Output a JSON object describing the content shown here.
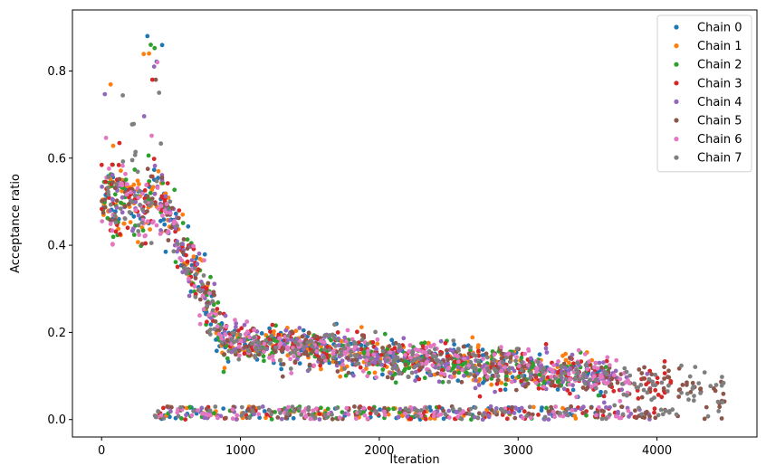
{
  "chart_data": {
    "type": "scatter",
    "xlabel": "Iteration",
    "ylabel": "Acceptance ratio",
    "xlim": [
      -210,
      4720
    ],
    "ylim": [
      -0.04,
      0.94
    ],
    "xticks": [
      0,
      1000,
      2000,
      3000,
      4000
    ],
    "yticks": [
      0.0,
      0.2,
      0.4,
      0.6,
      0.8
    ],
    "xtick_labels": [
      "0",
      "1000",
      "2000",
      "3000",
      "4000"
    ],
    "ytick_labels": [
      "0.0",
      "0.2",
      "0.4",
      "0.6",
      "0.8"
    ],
    "grid": false,
    "legend_position": "top-right",
    "series": [
      {
        "name": "Chain 0",
        "color": "#1f77b4",
        "n_points": 3600,
        "peak": 0.88
      },
      {
        "name": "Chain 1",
        "color": "#ff7f0e",
        "n_points": 3550,
        "peak": 0.84
      },
      {
        "name": "Chain 2",
        "color": "#2ca02c",
        "n_points": 3650,
        "peak": 0.86
      },
      {
        "name": "Chain 3",
        "color": "#d62728",
        "n_points": 4100,
        "peak": 0.78
      },
      {
        "name": "Chain 4",
        "color": "#9467bd",
        "n_points": 3950,
        "peak": 0.81
      },
      {
        "name": "Chain 5",
        "color": "#8c564b",
        "n_points": 4500,
        "peak": 0.78
      },
      {
        "name": "Chain 6",
        "color": "#e377c2",
        "n_points": 3800,
        "peak": 0.82
      },
      {
        "name": "Chain 7",
        "color": "#7f7f7f",
        "n_points": 4500,
        "peak": 0.75
      }
    ]
  }
}
